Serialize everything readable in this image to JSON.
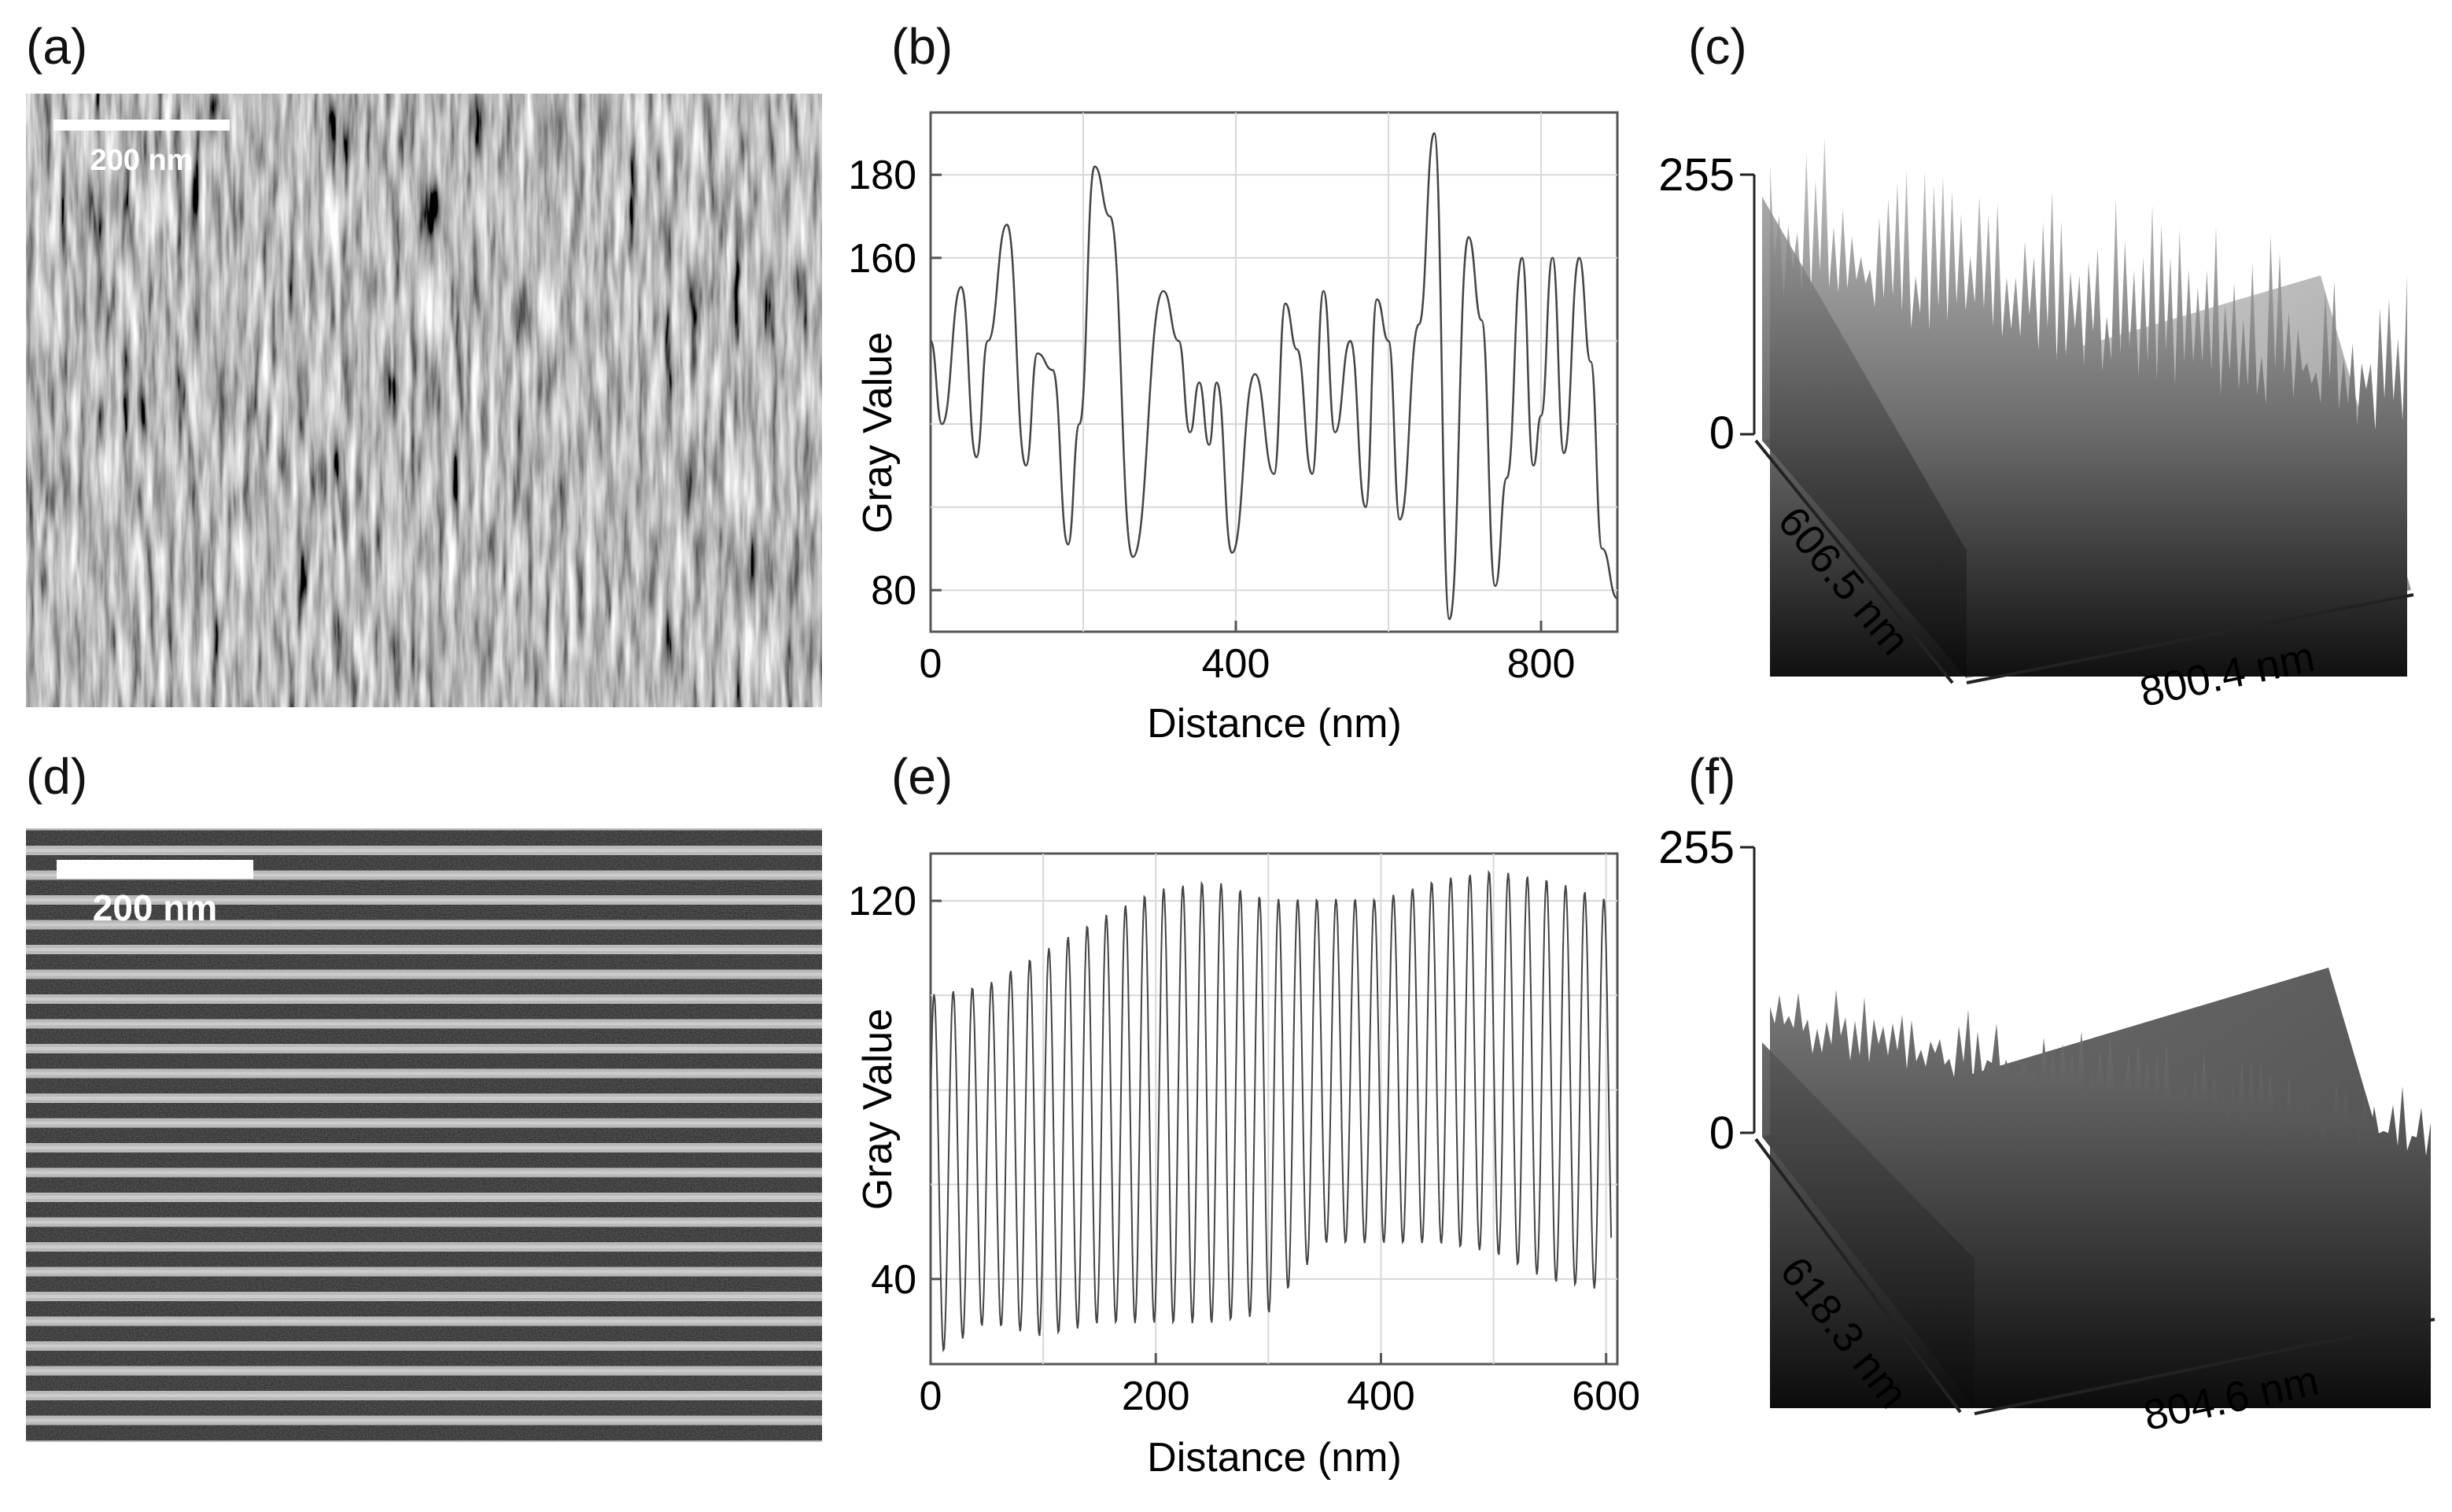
{
  "figure": {
    "panels": [
      {
        "id": "a",
        "label": "(a)",
        "type": "micrograph",
        "texture": "wavy-vertical-stripes",
        "scale_bar": "200 nm"
      },
      {
        "id": "b",
        "label": "(b)"
      },
      {
        "id": "c",
        "label": "(c)",
        "type": "surface-3d",
        "z_top": "255",
        "z_zero": "0",
        "depth_label": "606.5 nm",
        "width_label": "800.4 nm"
      },
      {
        "id": "d",
        "label": "(d)",
        "type": "micrograph",
        "texture": "horizontal-lamellae",
        "scale_bar": "200 nm"
      },
      {
        "id": "e",
        "label": "(e)"
      },
      {
        "id": "f",
        "label": "(f)",
        "type": "surface-3d",
        "z_top": "255",
        "z_zero": "0",
        "depth_label": "618.3 nm",
        "width_label": "804.6 nm"
      }
    ]
  },
  "chart_data": [
    {
      "panel": "b",
      "type": "line",
      "xlabel": "Distance (nm)",
      "ylabel": "Gray Value",
      "xlim": [
        0,
        900
      ],
      "ylim": [
        70,
        195
      ],
      "xticks": [
        0,
        400,
        800
      ],
      "yticks": [
        80,
        160,
        180
      ],
      "grid": true,
      "series": [
        {
          "x": [
            0,
            15,
            40,
            60,
            75,
            100,
            125,
            140,
            160,
            180,
            195,
            215,
            235,
            265,
            305,
            325,
            340,
            352,
            365,
            375,
            395,
            425,
            450,
            465,
            480,
            500,
            515,
            530,
            550,
            570,
            585,
            600,
            615,
            640,
            660,
            680,
            705,
            722,
            740,
            755,
            775,
            790,
            800,
            815,
            830,
            850,
            865,
            880,
            900
          ],
          "y": [
            140,
            120,
            153,
            112,
            140,
            168,
            110,
            137,
            133,
            91,
            120,
            182,
            170,
            88,
            152,
            140,
            118,
            130,
            115,
            130,
            89,
            132,
            108,
            149,
            138,
            108,
            152,
            118,
            140,
            100,
            150,
            140,
            97,
            144,
            190,
            73,
            165,
            145,
            81,
            107,
            160,
            110,
            122,
            160,
            113,
            160,
            135,
            90,
            78
          ]
        }
      ]
    },
    {
      "panel": "e",
      "type": "line",
      "xlabel": "Distance (nm)",
      "ylabel": "Gray Value",
      "xlim": [
        0,
        610
      ],
      "ylim": [
        22,
        130
      ],
      "xticks": [
        0,
        200,
        400,
        600
      ],
      "yticks": [
        40,
        120
      ],
      "grid": true,
      "oscillation_period_nm": 17,
      "peaks": [
        [
          5,
          98
        ],
        [
          50,
          100
        ],
        [
          100,
          107
        ],
        [
          150,
          114
        ],
        [
          200,
          120
        ],
        [
          250,
          122
        ],
        [
          300,
          118
        ],
        [
          350,
          118
        ],
        [
          400,
          118
        ],
        [
          450,
          122
        ],
        [
          500,
          124
        ],
        [
          550,
          122
        ],
        [
          600,
          118
        ]
      ],
      "troughs": [
        [
          5,
          26
        ],
        [
          50,
          33
        ],
        [
          100,
          30
        ],
        [
          150,
          33
        ],
        [
          200,
          33
        ],
        [
          250,
          33
        ],
        [
          300,
          35
        ],
        [
          350,
          50
        ],
        [
          400,
          50
        ],
        [
          450,
          50
        ],
        [
          500,
          48
        ],
        [
          550,
          42
        ],
        [
          600,
          40
        ]
      ]
    }
  ]
}
